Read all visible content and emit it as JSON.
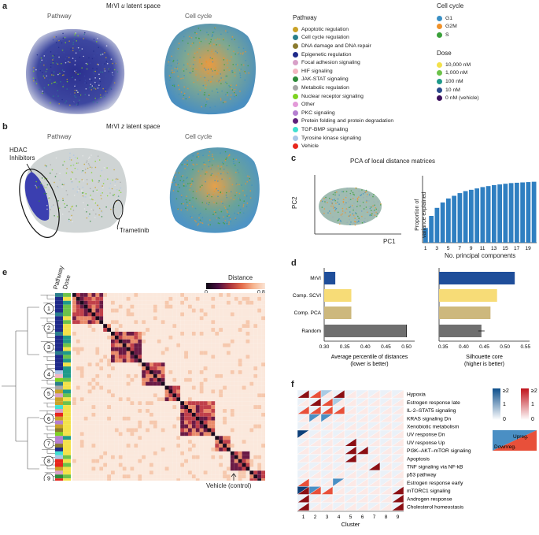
{
  "panel_letters": {
    "a": "a",
    "b": "b",
    "c": "c",
    "d": "d",
    "e": "e",
    "f": "f"
  },
  "panel_a": {
    "title": "MrVI u latent space",
    "left_label": "Pathway",
    "right_label": "Cell cycle"
  },
  "panel_b": {
    "title": "MrVI z latent space",
    "left_label": "Pathway",
    "right_label": "Cell cycle",
    "annotation_hdac": "HDAC\nInhibitors",
    "annotation_hdac_l1": "HDAC",
    "annotation_hdac_l2": "Inhibitors",
    "annotation_tram": "Trametinib"
  },
  "legend_pathway": {
    "title": "Pathway",
    "items": [
      {
        "label": "Apoptotic regulation",
        "color": "#c9a227"
      },
      {
        "label": "Cell cycle regulation",
        "color": "#2a7f8c"
      },
      {
        "label": "DNA damage and DNA repair",
        "color": "#8a7a2e"
      },
      {
        "label": "Epigenetic regulation",
        "color": "#1f2a8a"
      },
      {
        "label": "Focal adhesion signaling",
        "color": "#d8a0c8"
      },
      {
        "label": "HIF signaling",
        "color": "#f4b6c2"
      },
      {
        "label": "JAK-STAT signaling",
        "color": "#2e8a3a"
      },
      {
        "label": "Metabolic regulation",
        "color": "#a6a6a6"
      },
      {
        "label": "Nuclear receptor signaling",
        "color": "#7ed321"
      },
      {
        "label": "Other",
        "color": "#e39ad8"
      },
      {
        "label": "PKC signaling",
        "color": "#b57fd1"
      },
      {
        "label": "Protein folding and protein degradation",
        "color": "#5e1f7a"
      },
      {
        "label": "TGF-BMP signaling",
        "color": "#40e0d0"
      },
      {
        "label": "Tyrosine kinase signaling",
        "color": "#a9c6e6"
      },
      {
        "label": "Vehicle",
        "color": "#e8261c"
      }
    ]
  },
  "legend_cellcycle": {
    "title": "Cell cycle",
    "items": [
      {
        "label": "G1",
        "color": "#3a8fc4"
      },
      {
        "label": "G2M",
        "color": "#f0922b"
      },
      {
        "label": "S",
        "color": "#3aa03a"
      }
    ]
  },
  "legend_dose": {
    "title": "Dose",
    "items": [
      {
        "label": "10,000 nM",
        "color": "#f3e14a"
      },
      {
        "label": "1,000 nM",
        "color": "#6cc24a"
      },
      {
        "label": "100 nM",
        "color": "#1e9a8a"
      },
      {
        "label": "10 nM",
        "color": "#2a4a8c"
      },
      {
        "label": "0 nM (vehicle)",
        "color": "#3b0f5c"
      }
    ]
  },
  "panel_c": {
    "title": "PCA of local distance matrices",
    "scatter_x": "PC1",
    "scatter_y": "PC2",
    "ylabel_l1": "Proportion of",
    "ylabel_l2": "variance explained",
    "xlabel": "No. principal components",
    "ticks": [
      "1",
      "3",
      "5",
      "7",
      "9",
      "11",
      "13",
      "15",
      "17",
      "19"
    ]
  },
  "panel_d": {
    "methods": [
      "MrVI",
      "Comp. SCVI",
      "Comp. PCA",
      "Random"
    ],
    "left_ticks": [
      "0.30",
      "0.35",
      "0.40",
      "0.45",
      "0.50"
    ],
    "left_xlabel_l1": "Average percentile of distances",
    "left_xlabel_l2": "(lower is better)",
    "right_ticks": [
      "0.35",
      "0.40",
      "0.45",
      "0.50",
      "0.55"
    ],
    "right_xlabel_l1": "Silhouette core",
    "right_xlabel_l2": "(higher is better)"
  },
  "panel_e": {
    "col_pathway": "Pathway",
    "col_dose": "Dose",
    "colorbar_title": "Distance",
    "colorbar_min": "0",
    "colorbar_max": "0.8",
    "clusters": [
      "1",
      "2",
      "3",
      "4",
      "5",
      "6",
      "7",
      "8",
      "9"
    ],
    "vehicle_label": "Vehicle (control)"
  },
  "panel_f": {
    "genesets": [
      "Hypoxia",
      "Estrogen response late",
      "IL-2–STAT5 signaling",
      "KRAS signaling Dn",
      "Xenobiotic metabolism",
      "UV response Dn",
      "UV response Up",
      "PI3K–AKT–mTOR signaling",
      "Apoptosis",
      "TNF signaling via NF-kB",
      "p53 pathway",
      "Estrogen response early",
      "mTORC1 signaling",
      "Androgen response",
      "Cholesterol homeostasis"
    ],
    "clusters": [
      "1",
      "2",
      "3",
      "4",
      "5",
      "6",
      "7",
      "8",
      "9"
    ],
    "xlabel": "Cluster",
    "cb_down": {
      "max": "≥2",
      "mid": "1",
      "min": "0"
    },
    "cb_up": {
      "max": "≥2",
      "mid": "1",
      "min": "0"
    },
    "upreg": "Upreg.",
    "downreg": "Downreg."
  },
  "chart_data": [
    {
      "type": "bar",
      "title": "PCA of local distance matrices",
      "categories": [
        "1",
        "2",
        "3",
        "4",
        "5",
        "6",
        "7",
        "8",
        "9",
        "10",
        "11",
        "12",
        "13",
        "14",
        "15",
        "16",
        "17",
        "18",
        "19",
        "20"
      ],
      "values": [
        0.22,
        0.4,
        0.52,
        0.6,
        0.66,
        0.7,
        0.74,
        0.77,
        0.79,
        0.81,
        0.83,
        0.845,
        0.86,
        0.87,
        0.88,
        0.89,
        0.895,
        0.9,
        0.905,
        0.91
      ],
      "xlabel": "No. principal components",
      "ylabel": "Proportion of variance explained",
      "ylim": [
        0,
        1
      ]
    },
    {
      "type": "bar",
      "orientation": "horizontal",
      "categories": [
        "MrVI",
        "Comp. SCVI",
        "Comp. PCA",
        "Random"
      ],
      "values": [
        0.327,
        0.366,
        0.366,
        0.5
      ],
      "colors": [
        "#1f4e9a",
        "#f7dc77",
        "#cdb87d",
        "#6f6f6f"
      ],
      "xlabel": "Average percentile of distances (lower is better)",
      "xlim": [
        0.3,
        0.52
      ]
    },
    {
      "type": "bar",
      "orientation": "horizontal",
      "categories": [
        "MrVI",
        "Comp. SCVI",
        "Comp. PCA",
        "Random"
      ],
      "values": [
        0.524,
        0.481,
        0.465,
        0.443
      ],
      "colors": [
        "#1f4e9a",
        "#f7dc77",
        "#cdb87d",
        "#6f6f6f"
      ],
      "xlabel": "Silhouette core (higher is better)",
      "xlim": [
        0.34,
        0.56
      ]
    }
  ]
}
